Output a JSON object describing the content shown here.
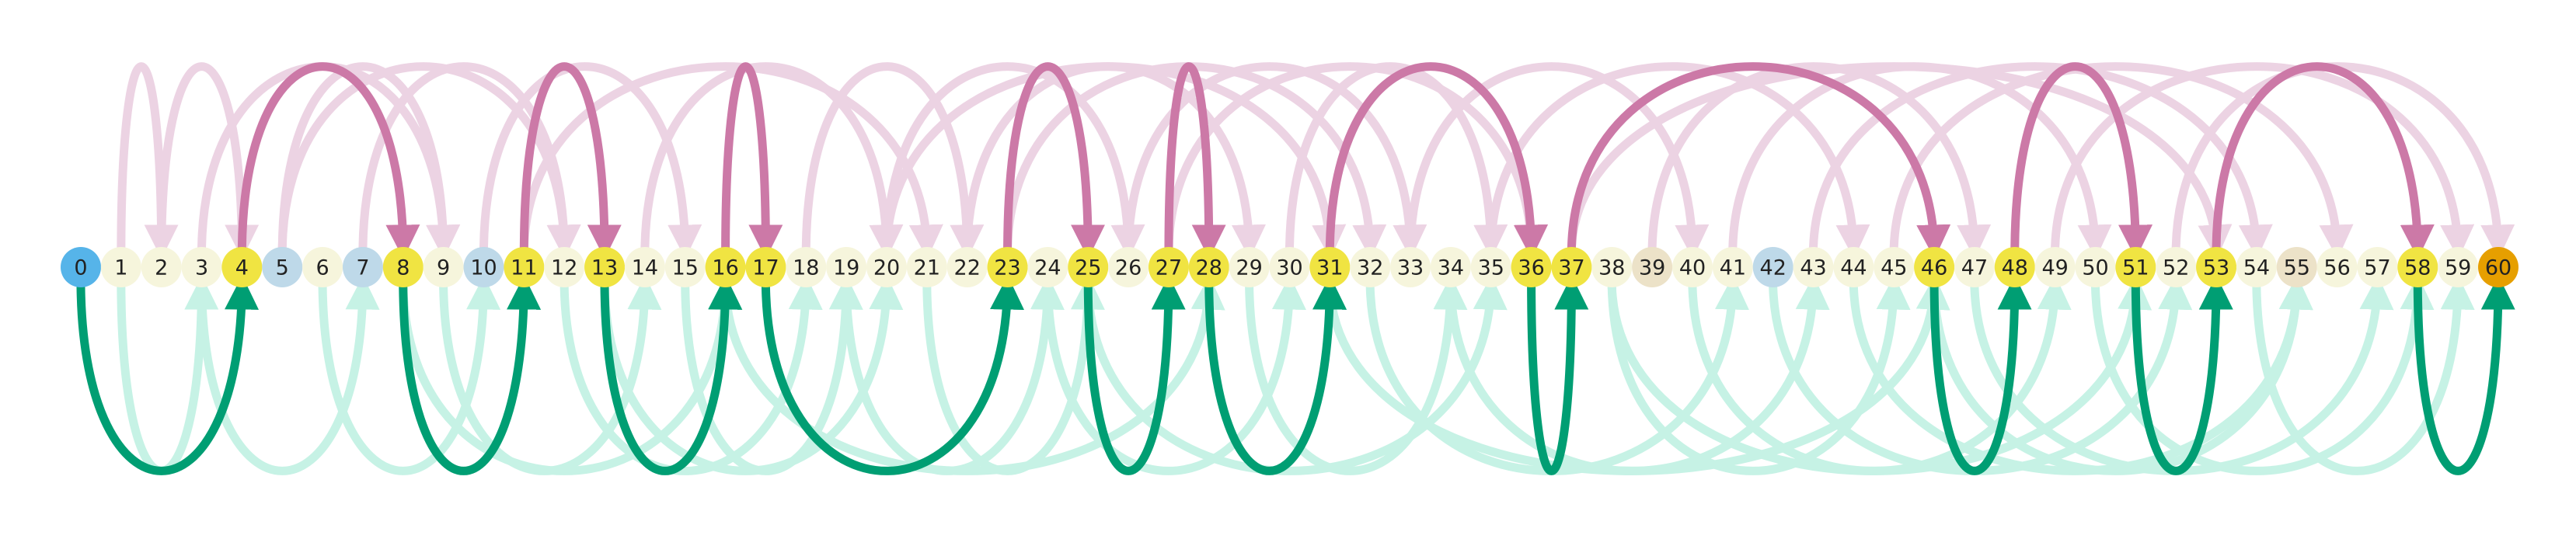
{
  "colors": {
    "jump_back": "#cc79a7",
    "jump_forward": "#009e73",
    "faint_back": "#ecd3e3",
    "faint_forward": "#c6f2e5",
    "node_default": "#f6f5dc",
    "node_highlight": "#f0e442",
    "node_blue": "#bed9e9",
    "node_tan": "#ece2c8",
    "node_start": "#56b4e9",
    "node_end": "#e69f00"
  },
  "nodes": [
    {
      "label": "0",
      "kind": "start"
    },
    {
      "label": "1",
      "kind": "default"
    },
    {
      "label": "2",
      "kind": "default"
    },
    {
      "label": "3",
      "kind": "default"
    },
    {
      "label": "4",
      "kind": "highlight"
    },
    {
      "label": "5",
      "kind": "blue"
    },
    {
      "label": "6",
      "kind": "default"
    },
    {
      "label": "7",
      "kind": "blue"
    },
    {
      "label": "8",
      "kind": "highlight"
    },
    {
      "label": "9",
      "kind": "default"
    },
    {
      "label": "10",
      "kind": "blue"
    },
    {
      "label": "11",
      "kind": "highlight"
    },
    {
      "label": "12",
      "kind": "default"
    },
    {
      "label": "13",
      "kind": "highlight"
    },
    {
      "label": "14",
      "kind": "default"
    },
    {
      "label": "15",
      "kind": "default"
    },
    {
      "label": "16",
      "kind": "highlight"
    },
    {
      "label": "17",
      "kind": "highlight"
    },
    {
      "label": "18",
      "kind": "default"
    },
    {
      "label": "19",
      "kind": "default"
    },
    {
      "label": "20",
      "kind": "default"
    },
    {
      "label": "21",
      "kind": "default"
    },
    {
      "label": "22",
      "kind": "default"
    },
    {
      "label": "23",
      "kind": "highlight"
    },
    {
      "label": "24",
      "kind": "default"
    },
    {
      "label": "25",
      "kind": "highlight"
    },
    {
      "label": "26",
      "kind": "default"
    },
    {
      "label": "27",
      "kind": "highlight"
    },
    {
      "label": "28",
      "kind": "highlight"
    },
    {
      "label": "29",
      "kind": "default"
    },
    {
      "label": "30",
      "kind": "default"
    },
    {
      "label": "31",
      "kind": "highlight"
    },
    {
      "label": "32",
      "kind": "default"
    },
    {
      "label": "33",
      "kind": "default"
    },
    {
      "label": "34",
      "kind": "default"
    },
    {
      "label": "35",
      "kind": "default"
    },
    {
      "label": "36",
      "kind": "highlight"
    },
    {
      "label": "37",
      "kind": "highlight"
    },
    {
      "label": "38",
      "kind": "default"
    },
    {
      "label": "39",
      "kind": "tan"
    },
    {
      "label": "40",
      "kind": "default"
    },
    {
      "label": "41",
      "kind": "default"
    },
    {
      "label": "42",
      "kind": "blue"
    },
    {
      "label": "43",
      "kind": "default"
    },
    {
      "label": "44",
      "kind": "default"
    },
    {
      "label": "45",
      "kind": "default"
    },
    {
      "label": "46",
      "kind": "highlight"
    },
    {
      "label": "47",
      "kind": "default"
    },
    {
      "label": "48",
      "kind": "highlight"
    },
    {
      "label": "49",
      "kind": "default"
    },
    {
      "label": "50",
      "kind": "default"
    },
    {
      "label": "51",
      "kind": "highlight"
    },
    {
      "label": "52",
      "kind": "default"
    },
    {
      "label": "53",
      "kind": "highlight"
    },
    {
      "label": "54",
      "kind": "default"
    },
    {
      "label": "55",
      "kind": "tan"
    },
    {
      "label": "56",
      "kind": "default"
    },
    {
      "label": "57",
      "kind": "default"
    },
    {
      "label": "58",
      "kind": "highlight"
    },
    {
      "label": "59",
      "kind": "default"
    },
    {
      "label": "60",
      "kind": "end"
    }
  ],
  "path_edges": [
    {
      "from": 0,
      "to": 4
    },
    {
      "from": 4,
      "to": 8
    },
    {
      "from": 8,
      "to": 11
    },
    {
      "from": 11,
      "to": 13
    },
    {
      "from": 13,
      "to": 16
    },
    {
      "from": 16,
      "to": 17
    },
    {
      "from": 17,
      "to": 23
    },
    {
      "from": 23,
      "to": 25
    },
    {
      "from": 25,
      "to": 27
    },
    {
      "from": 27,
      "to": 28
    },
    {
      "from": 28,
      "to": 31
    },
    {
      "from": 31,
      "to": 36
    },
    {
      "from": 36,
      "to": 37
    },
    {
      "from": 37,
      "to": 46
    },
    {
      "from": 46,
      "to": 48
    },
    {
      "from": 48,
      "to": 51
    },
    {
      "from": 51,
      "to": 53
    },
    {
      "from": 53,
      "to": 58
    },
    {
      "from": 58,
      "to": 60
    }
  ],
  "faint_edges": [
    {
      "from": 1,
      "to": 2
    },
    {
      "from": 1,
      "to": 3
    },
    {
      "from": 2,
      "to": 4
    },
    {
      "from": 3,
      "to": 7
    },
    {
      "from": 5,
      "to": 9
    },
    {
      "from": 6,
      "to": 10
    },
    {
      "from": 7,
      "to": 12
    },
    {
      "from": 9,
      "to": 14
    },
    {
      "from": 10,
      "to": 15
    },
    {
      "from": 12,
      "to": 18
    },
    {
      "from": 14,
      "to": 20
    },
    {
      "from": 15,
      "to": 19
    },
    {
      "from": 18,
      "to": 22
    },
    {
      "from": 19,
      "to": 24
    },
    {
      "from": 20,
      "to": 26
    },
    {
      "from": 21,
      "to": 25
    },
    {
      "from": 22,
      "to": 29
    },
    {
      "from": 24,
      "to": 30
    },
    {
      "from": 26,
      "to": 33
    },
    {
      "from": 29,
      "to": 34
    },
    {
      "from": 30,
      "to": 35
    },
    {
      "from": 32,
      "to": 41
    },
    {
      "from": 33,
      "to": 40
    },
    {
      "from": 34,
      "to": 43
    },
    {
      "from": 35,
      "to": 44
    },
    {
      "from": 38,
      "to": 45
    },
    {
      "from": 39,
      "to": 47
    },
    {
      "from": 40,
      "to": 49
    },
    {
      "from": 41,
      "to": 50
    },
    {
      "from": 42,
      "to": 52
    },
    {
      "from": 43,
      "to": 54
    },
    {
      "from": 44,
      "to": 55
    },
    {
      "from": 45,
      "to": 56
    },
    {
      "from": 47,
      "to": 57
    },
    {
      "from": 49,
      "to": 59
    },
    {
      "from": 50,
      "to": 58
    },
    {
      "from": 52,
      "to": 60
    },
    {
      "from": 54,
      "to": 59
    },
    {
      "from": 3,
      "to": 9
    },
    {
      "from": 8,
      "to": 16
    },
    {
      "from": 11,
      "to": 21
    },
    {
      "from": 16,
      "to": 28
    },
    {
      "from": 27,
      "to": 36
    },
    {
      "from": 31,
      "to": 46
    },
    {
      "from": 37,
      "to": 53
    },
    {
      "from": 46,
      "to": 55
    },
    {
      "from": 5,
      "to": 12
    },
    {
      "from": 13,
      "to": 20
    },
    {
      "from": 23,
      "to": 32
    },
    {
      "from": 38,
      "to": 51
    },
    {
      "from": 20,
      "to": 31
    },
    {
      "from": 25,
      "to": 35
    }
  ]
}
